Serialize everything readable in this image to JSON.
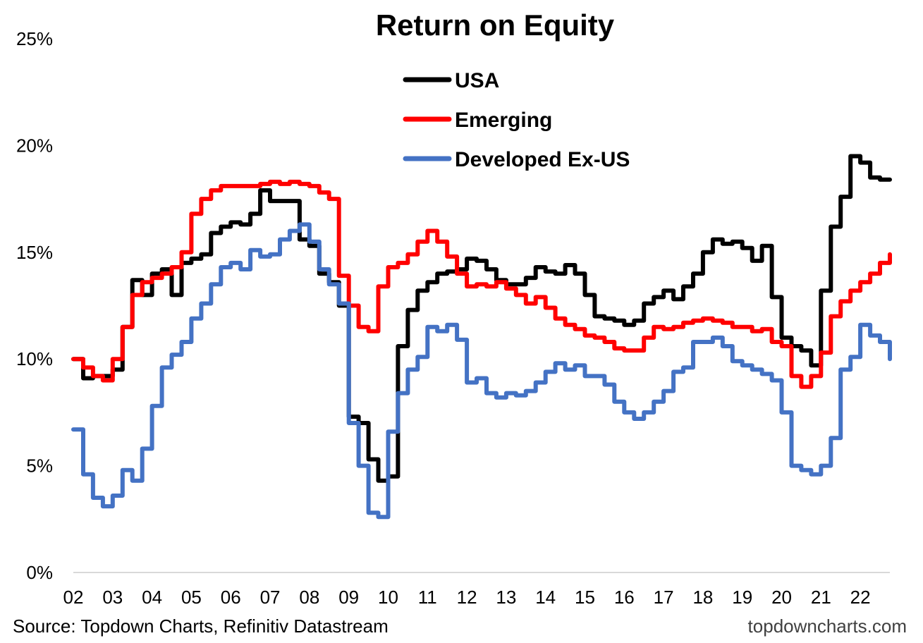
{
  "chart_data": {
    "type": "line",
    "title": "Return on Equity",
    "xlabel": "",
    "ylabel": "",
    "ylim": [
      0,
      25
    ],
    "y_ticks": [
      0,
      5,
      10,
      15,
      20,
      25
    ],
    "y_tick_labels": [
      "0%",
      "5%",
      "10%",
      "15%",
      "20%",
      "25%"
    ],
    "x_ticks": [
      "02",
      "03",
      "04",
      "05",
      "06",
      "07",
      "08",
      "09",
      "10",
      "11",
      "12",
      "13",
      "14",
      "15",
      "16",
      "17",
      "18",
      "19",
      "20",
      "21",
      "22"
    ],
    "xlim": [
      2002.0,
      2022.75
    ],
    "grid": false,
    "legend_position": "top-center",
    "series": [
      {
        "name": "USA",
        "color": "#000000",
        "x": [
          2002.0,
          2002.25,
          2002.5,
          2002.75,
          2003.0,
          2003.25,
          2003.5,
          2003.75,
          2004.0,
          2004.25,
          2004.5,
          2004.75,
          2005.0,
          2005.25,
          2005.5,
          2005.75,
          2006.0,
          2006.25,
          2006.5,
          2006.75,
          2007.0,
          2007.25,
          2007.5,
          2007.75,
          2008.0,
          2008.25,
          2008.5,
          2008.75,
          2009.0,
          2009.25,
          2009.5,
          2009.75,
          2010.0,
          2010.25,
          2010.5,
          2010.75,
          2011.0,
          2011.25,
          2011.5,
          2011.75,
          2012.0,
          2012.25,
          2012.5,
          2012.75,
          2013.0,
          2013.25,
          2013.5,
          2013.75,
          2014.0,
          2014.25,
          2014.5,
          2014.75,
          2015.0,
          2015.25,
          2015.5,
          2015.75,
          2016.0,
          2016.25,
          2016.5,
          2016.75,
          2017.0,
          2017.25,
          2017.5,
          2017.75,
          2018.0,
          2018.25,
          2018.5,
          2018.75,
          2019.0,
          2019.25,
          2019.5,
          2019.75,
          2020.0,
          2020.25,
          2020.5,
          2020.75,
          2021.0,
          2021.25,
          2021.5,
          2021.75,
          2022.0,
          2022.25,
          2022.5,
          2022.75
        ],
        "values": [
          10.0,
          9.1,
          9.2,
          9.2,
          9.5,
          11.5,
          13.7,
          13.0,
          14.0,
          14.2,
          13.0,
          14.5,
          14.7,
          14.9,
          15.9,
          16.2,
          16.4,
          16.3,
          16.8,
          17.9,
          17.4,
          17.4,
          17.4,
          15.6,
          15.3,
          14.0,
          13.6,
          12.5,
          7.3,
          7.0,
          5.3,
          4.3,
          4.5,
          10.6,
          12.3,
          13.2,
          13.6,
          14.0,
          14.1,
          14.2,
          14.7,
          14.6,
          14.2,
          13.7,
          13.5,
          13.5,
          13.8,
          14.3,
          14.1,
          14.0,
          14.4,
          14.0,
          13.0,
          12.0,
          11.9,
          11.8,
          11.6,
          11.8,
          12.6,
          12.9,
          13.2,
          12.8,
          13.4,
          14.0,
          15.0,
          15.6,
          15.4,
          15.5,
          15.2,
          14.6,
          15.3,
          12.9,
          11.0,
          10.6,
          10.4,
          9.7,
          13.2,
          16.2,
          17.6,
          19.5,
          19.2,
          18.5,
          18.4,
          18.4
        ]
      },
      {
        "name": "Emerging",
        "color": "#ff0000",
        "x": [
          2002.0,
          2002.25,
          2002.5,
          2002.75,
          2003.0,
          2003.25,
          2003.5,
          2003.75,
          2004.0,
          2004.25,
          2004.5,
          2004.75,
          2005.0,
          2005.25,
          2005.5,
          2005.75,
          2006.0,
          2006.25,
          2006.5,
          2006.75,
          2007.0,
          2007.25,
          2007.5,
          2007.75,
          2008.0,
          2008.25,
          2008.5,
          2008.75,
          2009.0,
          2009.25,
          2009.5,
          2009.75,
          2010.0,
          2010.25,
          2010.5,
          2010.75,
          2011.0,
          2011.25,
          2011.5,
          2011.75,
          2012.0,
          2012.25,
          2012.5,
          2012.75,
          2013.0,
          2013.25,
          2013.5,
          2013.75,
          2014.0,
          2014.25,
          2014.5,
          2014.75,
          2015.0,
          2015.25,
          2015.5,
          2015.75,
          2016.0,
          2016.25,
          2016.5,
          2016.75,
          2017.0,
          2017.25,
          2017.5,
          2017.75,
          2018.0,
          2018.25,
          2018.5,
          2018.75,
          2019.0,
          2019.25,
          2019.5,
          2019.75,
          2020.0,
          2020.25,
          2020.5,
          2020.75,
          2021.0,
          2021.25,
          2021.5,
          2021.75,
          2022.0,
          2022.25,
          2022.5,
          2022.75
        ],
        "values": [
          10.0,
          9.6,
          9.2,
          9.0,
          10.0,
          11.5,
          13.0,
          13.6,
          13.8,
          14.0,
          14.3,
          15.0,
          16.8,
          17.5,
          17.9,
          18.1,
          18.1,
          18.1,
          18.1,
          18.2,
          18.3,
          18.2,
          18.3,
          18.2,
          18.1,
          17.8,
          17.5,
          13.9,
          12.5,
          11.5,
          11.3,
          13.4,
          14.3,
          14.5,
          14.9,
          15.5,
          16.0,
          15.5,
          14.8,
          14.0,
          13.4,
          13.5,
          13.4,
          13.6,
          13.3,
          13.0,
          12.6,
          12.9,
          12.4,
          11.9,
          11.6,
          11.4,
          11.1,
          11.0,
          10.8,
          10.5,
          10.4,
          10.4,
          11.0,
          11.5,
          11.4,
          11.5,
          11.7,
          11.8,
          11.9,
          11.8,
          11.7,
          11.5,
          11.5,
          11.3,
          11.4,
          10.8,
          10.6,
          9.2,
          8.7,
          9.2,
          10.3,
          12.0,
          12.7,
          13.2,
          13.6,
          14.0,
          14.5,
          14.9
        ]
      },
      {
        "name": "Developed Ex-US",
        "color": "#4472c4",
        "x": [
          2002.0,
          2002.25,
          2002.5,
          2002.75,
          2003.0,
          2003.25,
          2003.5,
          2003.75,
          2004.0,
          2004.25,
          2004.5,
          2004.75,
          2005.0,
          2005.25,
          2005.5,
          2005.75,
          2006.0,
          2006.25,
          2006.5,
          2006.75,
          2007.0,
          2007.25,
          2007.5,
          2007.75,
          2008.0,
          2008.25,
          2008.5,
          2008.75,
          2009.0,
          2009.25,
          2009.5,
          2009.75,
          2010.0,
          2010.25,
          2010.5,
          2010.75,
          2011.0,
          2011.25,
          2011.5,
          2011.75,
          2012.0,
          2012.25,
          2012.5,
          2012.75,
          2013.0,
          2013.25,
          2013.5,
          2013.75,
          2014.0,
          2014.25,
          2014.5,
          2014.75,
          2015.0,
          2015.25,
          2015.5,
          2015.75,
          2016.0,
          2016.25,
          2016.5,
          2016.75,
          2017.0,
          2017.25,
          2017.5,
          2017.75,
          2018.0,
          2018.25,
          2018.5,
          2018.75,
          2019.0,
          2019.25,
          2019.5,
          2019.75,
          2020.0,
          2020.25,
          2020.5,
          2020.75,
          2021.0,
          2021.25,
          2021.5,
          2021.75,
          2022.0,
          2022.25,
          2022.5,
          2022.75
        ],
        "values": [
          6.7,
          4.6,
          3.5,
          3.1,
          3.6,
          4.8,
          4.3,
          5.8,
          7.8,
          9.6,
          10.2,
          10.8,
          11.9,
          12.6,
          13.5,
          14.3,
          14.5,
          14.2,
          15.1,
          14.8,
          14.9,
          15.6,
          16.0,
          16.3,
          15.5,
          14.2,
          13.5,
          12.6,
          7.0,
          5.0,
          2.8,
          2.6,
          6.6,
          8.4,
          9.5,
          10.1,
          11.5,
          11.3,
          11.6,
          10.9,
          8.9,
          9.1,
          8.4,
          8.2,
          8.4,
          8.3,
          8.5,
          8.9,
          9.4,
          9.8,
          9.5,
          9.7,
          9.2,
          9.2,
          8.8,
          8.0,
          7.5,
          7.2,
          7.5,
          8.0,
          8.5,
          9.4,
          9.6,
          10.8,
          10.8,
          11.0,
          10.6,
          9.9,
          9.7,
          9.5,
          9.3,
          9.0,
          7.5,
          5.0,
          4.8,
          4.6,
          5.0,
          6.3,
          9.5,
          10.1,
          11.6,
          11.1,
          10.8,
          10.0
        ]
      }
    ]
  },
  "footer": {
    "source": "Source: Topdown Charts, Refinitiv Datastream",
    "website": "topdowncharts.com"
  }
}
